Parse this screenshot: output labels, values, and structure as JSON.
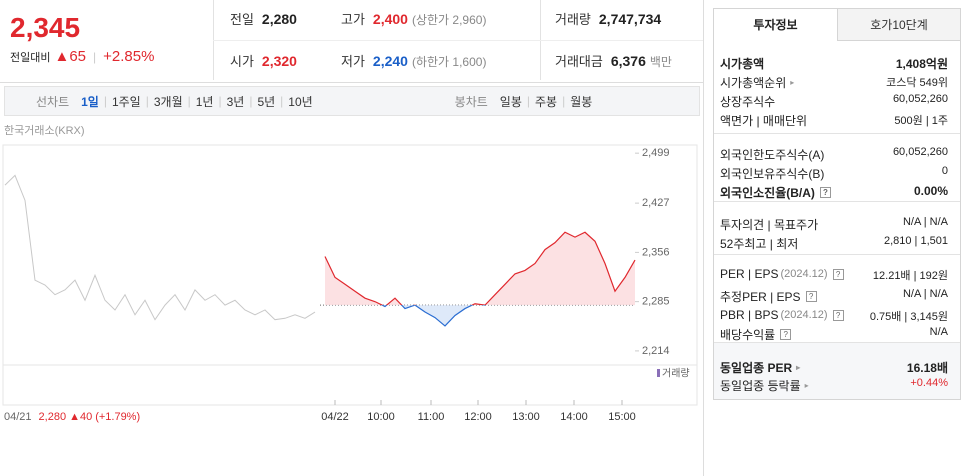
{
  "quote": {
    "price": "2,345",
    "change_label": "전일대비",
    "change": "▲65",
    "rate": "+2.85%"
  },
  "summary": [
    [
      {
        "label": "전일",
        "value": "2,280"
      },
      {
        "label": "고가",
        "value": "2,400",
        "note": "(상한가 2,960)",
        "color": "#e0282e"
      },
      {
        "label": "거래량",
        "value": "2,747,734"
      }
    ],
    [
      {
        "label": "시가",
        "value": "2,320",
        "color": "#e0282e"
      },
      {
        "label": "저가",
        "value": "2,240",
        "note": "(하한가 1,600)",
        "color": "#1a5fc8"
      },
      {
        "label": "거래대금",
        "value": "6,376",
        "note": "백만"
      }
    ]
  ],
  "tabs": {
    "line": "선차트",
    "line_periods": [
      "1일",
      "1주일",
      "3개월",
      "1년",
      "3년",
      "5년",
      "10년"
    ],
    "selected": 0,
    "candle": "봉차트",
    "candle_periods": [
      "일봉",
      "주봉",
      "월봉"
    ]
  },
  "chart_data": {
    "type": "line",
    "source": "한국거래소(KRX)",
    "volume_label": "거래량",
    "prev_day": {
      "date": "04/21",
      "price": "2,280",
      "change": "▲40",
      "rate": "(+1.79%)"
    },
    "x": [
      0,
      1,
      2,
      3,
      4,
      5,
      6,
      7,
      8,
      9,
      10,
      11,
      12,
      13,
      14,
      15,
      16,
      17,
      18,
      19,
      20,
      21,
      22,
      23,
      24,
      25,
      26,
      27,
      28,
      29,
      30,
      31,
      32,
      33,
      34,
      35,
      36,
      37,
      38,
      39,
      40,
      41,
      42,
      43,
      44,
      45,
      46,
      47,
      48,
      49,
      50,
      51,
      52,
      53,
      54,
      55,
      56,
      57,
      58,
      59,
      60,
      61,
      62,
      63
    ],
    "xlim": [
      0,
      63
    ],
    "xticks": [
      {
        "value": 33,
        "label": "04/22"
      },
      {
        "value": 37.6,
        "label": "10:00"
      },
      {
        "value": 42.6,
        "label": "11:00"
      },
      {
        "value": 47.3,
        "label": "12:00"
      },
      {
        "value": 52.1,
        "label": "13:00"
      },
      {
        "value": 56.9,
        "label": "14:00"
      },
      {
        "value": 61.7,
        "label": "15:00"
      }
    ],
    "ylim": [
      2198,
      2518
    ],
    "yticks": [
      {
        "value": 2499,
        "label": "2,499"
      },
      {
        "value": 2427,
        "label": "2,427"
      },
      {
        "value": 2356,
        "label": "2,356"
      },
      {
        "value": 2285,
        "label": "2,285"
      },
      {
        "value": 2214,
        "label": "2,214"
      }
    ],
    "baseline": 2280,
    "series": [
      {
        "color": "#c8c8c8",
        "values": [
          2453,
          2467,
          2431,
          2316,
          2309,
          2295,
          2302,
          2316,
          2287,
          2323,
          2287,
          2273,
          2295,
          2266,
          2287,
          2259,
          2280,
          2295,
          2273,
          2302,
          2287,
          2295,
          2280,
          2287,
          2273,
          2266,
          2273,
          2259,
          2261,
          2266,
          2261,
          2270,
          null,
          null,
          null,
          null,
          null,
          null,
          null,
          null,
          null,
          null,
          null,
          null,
          null,
          null,
          null,
          null,
          null,
          null,
          null,
          null,
          null,
          null,
          null,
          null,
          null,
          null,
          null,
          null,
          null,
          null,
          null,
          null
        ]
      },
      {
        "color": "#e0282e",
        "color_below": "#2a6dd2",
        "fill": "#fbd9dc",
        "fill_below": "#d6e4f7",
        "values": [
          null,
          null,
          null,
          null,
          null,
          null,
          null,
          null,
          null,
          null,
          null,
          null,
          null,
          null,
          null,
          null,
          null,
          null,
          null,
          null,
          null,
          null,
          null,
          null,
          null,
          null,
          null,
          null,
          null,
          null,
          null,
          null,
          2350,
          2320,
          2310,
          2300,
          2290,
          2285,
          2278,
          2290,
          2275,
          2280,
          2270,
          2262,
          2250,
          2265,
          2275,
          2282,
          2280,
          2295,
          2310,
          2325,
          2330,
          2340,
          2360,
          2370,
          2385,
          2378,
          2385,
          2372,
          2340,
          2300,
          2320,
          2345
        ]
      }
    ]
  },
  "info": {
    "tabs": [
      "투자정보",
      "호가10단계"
    ],
    "sections": [
      [
        {
          "label": "시가총액",
          "value": "1,408억원",
          "bold": true
        },
        {
          "label": "시가총액순위",
          "value": "코스닥 549위",
          "link": true
        },
        {
          "label": "상장주식수",
          "value": "60,052,260"
        },
        {
          "label": "액면가 | 매매단위",
          "value": "500원 | 1주"
        }
      ],
      [
        {
          "label": "외국인한도주식수(A)",
          "value": "60,052,260"
        },
        {
          "label": "외국인보유주식수(B)",
          "value": "0"
        },
        {
          "label": "외국인소진율(B/A)",
          "value": "0.00%",
          "bold": true,
          "help": true
        }
      ],
      [
        {
          "label": "투자의견 | 목표주가",
          "value": "N/A | N/A"
        },
        {
          "label": "52주최고 | 최저",
          "value": "2,810 | 1,501"
        }
      ],
      [
        {
          "label": "PER | EPS",
          "note": "(2024.12)",
          "value": "12.21배 | 192원",
          "help": true
        },
        {
          "label": "추정PER | EPS",
          "value": "N/A | N/A",
          "help": true
        },
        {
          "label": "PBR | BPS",
          "note": "(2024.12)",
          "value": "0.75배 | 3,145원",
          "help": true
        },
        {
          "label": "배당수익률",
          "value": "N/A",
          "help": true
        }
      ],
      [
        {
          "label": "동일업종 PER",
          "value": "16.18배",
          "bold": true,
          "link": true
        },
        {
          "label": "동일업종 등락률",
          "value": "+0.44%",
          "color": "#e0282e",
          "link": true
        }
      ]
    ]
  }
}
